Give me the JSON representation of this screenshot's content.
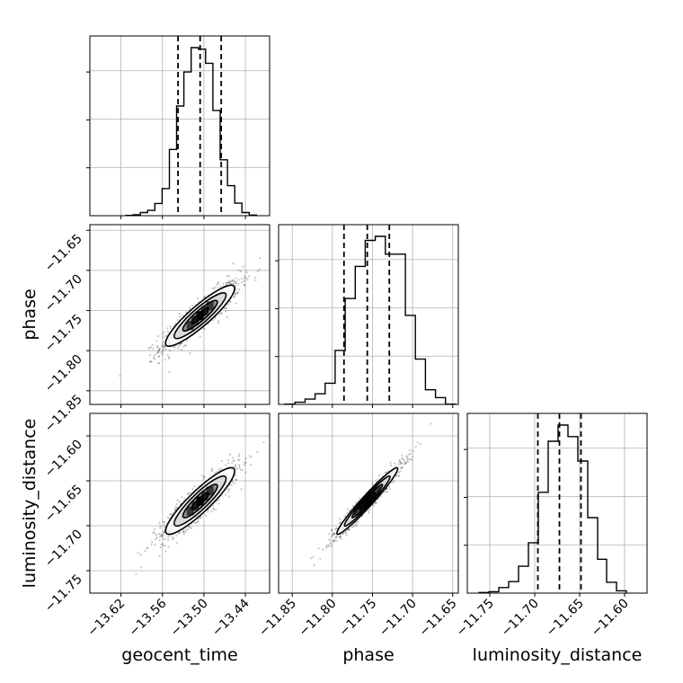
{
  "chart_data": {
    "type": "corner",
    "params": [
      "geocent_time",
      "phase",
      "luminosity_distance"
    ],
    "axis_labels": {
      "geocent_time": "geocent_time",
      "phase": "phase",
      "luminosity_distance": "luminosity_distance"
    },
    "ranges": {
      "geocent_time": [
        -13.665,
        -13.405
      ],
      "phase": [
        -11.867,
        -11.643
      ],
      "luminosity_distance": [
        -11.775,
        -11.575
      ]
    },
    "ticks": {
      "geocent_time": {
        "values": [
          -13.62,
          -13.56,
          -13.5,
          -13.44
        ],
        "labels": [
          "−13.62",
          "−13.56",
          "−13.50",
          "−13.44"
        ]
      },
      "phase": {
        "values": [
          -11.85,
          -11.8,
          -11.75,
          -11.7,
          -11.65
        ],
        "labels": [
          "−11.85",
          "−11.80",
          "−11.75",
          "−11.70",
          "−11.65"
        ]
      },
      "luminosity_distance": {
        "values": [
          -11.75,
          -11.7,
          -11.65,
          -11.6
        ],
        "labels": [
          "−11.75",
          "−11.70",
          "−11.65",
          "−11.60"
        ]
      }
    },
    "quantiles": {
      "geocent_time": [
        -13.5375,
        -13.5055,
        -13.475
      ],
      "phase": [
        -11.7855,
        -11.7565,
        -11.729
      ],
      "luminosity_distance": [
        -11.6965,
        -11.6725,
        -11.6485
      ]
    },
    "histograms": {
      "geocent_time": {
        "edges": [
          -13.613,
          -13.6025,
          -13.592,
          -13.5815,
          -13.571,
          -13.5605,
          -13.55,
          -13.5395,
          -13.529,
          -13.5185,
          -13.508,
          -13.4975,
          -13.487,
          -13.4765,
          -13.466,
          -13.4555,
          -13.445,
          -13.4345,
          -13.424
        ],
        "counts": [
          1,
          3,
          10,
          17,
          39,
          87,
          212,
          351,
          460,
          538,
          533,
          488,
          337,
          179,
          96,
          40,
          10,
          2
        ]
      },
      "phase": {
        "edges": [
          -11.859,
          -11.8465,
          -11.834,
          -11.8215,
          -11.809,
          -11.7965,
          -11.784,
          -11.7715,
          -11.759,
          -11.7465,
          -11.734,
          -11.709,
          -11.6965,
          -11.684,
          -11.6715,
          -11.659,
          -11.6465
        ],
        "counts": [
          1,
          7,
          17,
          34,
          68,
          173,
          339,
          442,
          525,
          538,
          481,
          285,
          145,
          47,
          22,
          1
        ]
      },
      "luminosity_distance": {
        "edges": [
          -11.762,
          -11.751,
          -11.74,
          -11.729,
          -11.718,
          -11.707,
          -11.696,
          -11.685,
          -11.674,
          -11.663,
          -11.652,
          -11.641,
          -11.63,
          -11.62,
          -11.609,
          -11.598
        ],
        "counts": [
          2,
          5,
          19,
          39,
          91,
          171,
          342,
          515,
          570,
          531,
          448,
          256,
          115,
          37,
          8
        ]
      }
    },
    "joint": {
      "phase_vs_geocent_time": {
        "x": "geocent_time",
        "y": "phase",
        "center": [
          -13.5055,
          -11.7565
        ],
        "sigma": [
          0.025,
          0.019
        ],
        "rho": 0.9,
        "levels_sigma": [
          0.5,
          1.0,
          1.5,
          2.0
        ]
      },
      "luminosity_distance_vs_geocent_time": {
        "x": "geocent_time",
        "y": "luminosity_distance",
        "center": [
          -13.5055,
          -11.6725
        ],
        "sigma": [
          0.025,
          0.0185
        ],
        "rho": 0.9,
        "levels_sigma": [
          0.5,
          1.0,
          1.5,
          2.0
        ]
      },
      "luminosity_distance_vs_phase": {
        "x": "phase",
        "y": "luminosity_distance",
        "center": [
          -11.7565,
          -11.6725
        ],
        "sigma": [
          0.019,
          0.0185
        ],
        "rho": 0.97,
        "levels_sigma": [
          0.5,
          1.0,
          1.5,
          2.0
        ]
      }
    },
    "grid": true
  }
}
